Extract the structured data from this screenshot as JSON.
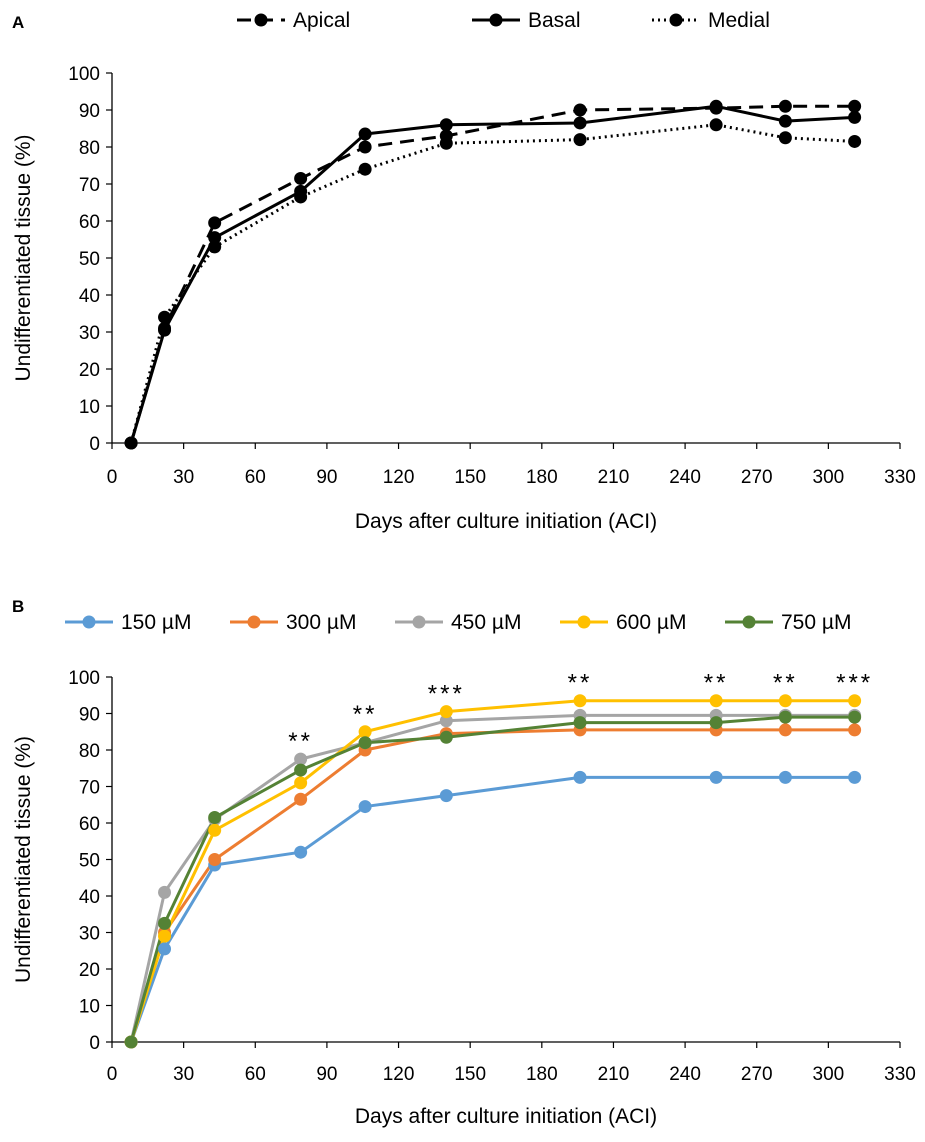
{
  "chart_data": [
    {
      "type": "line",
      "panel_label": "A",
      "xlabel": "Days after culture initiation (ACI)",
      "ylabel": "Undifferentiated tissue (%)",
      "xlim": [
        0,
        330
      ],
      "ylim": [
        0,
        100
      ],
      "xticks": [
        "0",
        "30",
        "60",
        "90",
        "120",
        "150",
        "180",
        "210",
        "240",
        "270",
        "300",
        "330"
      ],
      "yticks": [
        "0",
        "10",
        "20",
        "30",
        "40",
        "50",
        "60",
        "70",
        "80",
        "90",
        "100"
      ],
      "legend_position": "top-center",
      "grid": false,
      "x": [
        8,
        22,
        43,
        79,
        106,
        140,
        196,
        253,
        282,
        311
      ],
      "series": [
        {
          "name": "Apical",
          "color": "#000000",
          "style": "dashed",
          "values": [
            0,
            31,
            59.5,
            71.5,
            80,
            83,
            90,
            90.5,
            91,
            91
          ]
        },
        {
          "name": "Basal",
          "color": "#000000",
          "style": "solid",
          "values": [
            0,
            30.5,
            55.5,
            68,
            83.5,
            86,
            86.5,
            91,
            87,
            88
          ]
        },
        {
          "name": "Medial",
          "color": "#000000",
          "style": "dotted",
          "values": [
            0,
            34,
            53,
            66.5,
            74,
            81,
            82,
            86,
            82.5,
            81.5
          ]
        }
      ]
    },
    {
      "type": "line",
      "panel_label": "B",
      "xlabel": "Days after culture initiation (ACI)",
      "ylabel": "Undifferentiated tissue (%)",
      "xlim": [
        0,
        330
      ],
      "ylim": [
        0,
        100
      ],
      "xticks": [
        "0",
        "30",
        "60",
        "90",
        "120",
        "150",
        "180",
        "210",
        "240",
        "270",
        "300",
        "330"
      ],
      "yticks": [
        "0",
        "10",
        "20",
        "30",
        "40",
        "50",
        "60",
        "70",
        "80",
        "90",
        "100"
      ],
      "legend_position": "top-center",
      "grid": false,
      "x": [
        8,
        22,
        43,
        79,
        106,
        140,
        196,
        253,
        282,
        311
      ],
      "series": [
        {
          "name": "150 µM",
          "color": "#5B9BD5",
          "values": [
            0,
            25.5,
            48.5,
            52,
            64.5,
            67.5,
            72.5,
            72.5,
            72.5,
            72.5
          ]
        },
        {
          "name": "300 µM",
          "color": "#ED7D31",
          "values": [
            0,
            30,
            50,
            66.5,
            80,
            84.5,
            85.5,
            85.5,
            85.5,
            85.5
          ]
        },
        {
          "name": "450 µM",
          "color": "#A5A5A5",
          "values": [
            0,
            41,
            61,
            77.5,
            82,
            88,
            89.5,
            89.5,
            89.5,
            89.5
          ]
        },
        {
          "name": "600 µM",
          "color": "#FFC000",
          "values": [
            0,
            29,
            58,
            71,
            85,
            90.5,
            93.5,
            93.5,
            93.5,
            93.5
          ]
        },
        {
          "name": "750 µM",
          "color": "#548235",
          "values": [
            0,
            32.5,
            61.5,
            74.5,
            82,
            83.5,
            87.5,
            87.5,
            89,
            89
          ]
        }
      ],
      "annotations": [
        {
          "x": 79,
          "text": "**"
        },
        {
          "x": 106,
          "text": "**"
        },
        {
          "x": 140,
          "text": "***"
        },
        {
          "x": 196,
          "text": "**"
        },
        {
          "x": 253,
          "text": "**"
        },
        {
          "x": 282,
          "text": "**"
        },
        {
          "x": 311,
          "text": "***"
        }
      ]
    }
  ]
}
